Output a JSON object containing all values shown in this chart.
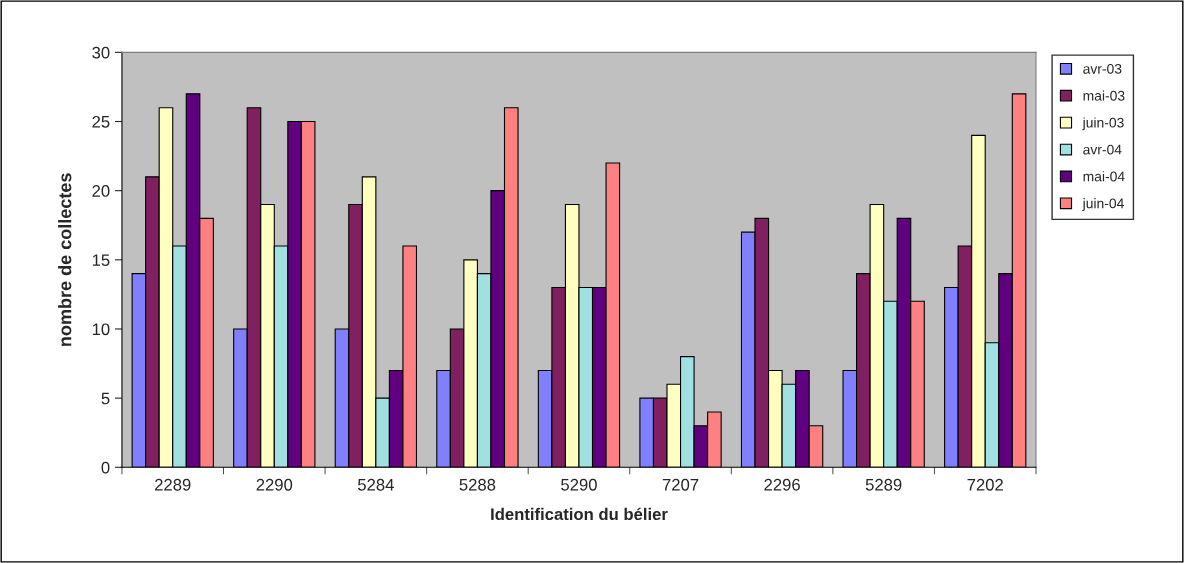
{
  "chart_data": {
    "type": "bar",
    "xlabel": "Identification du bélier",
    "ylabel": "nombre de collectes",
    "categories": [
      "2289",
      "2290",
      "5284",
      "5288",
      "5290",
      "7207",
      "2296",
      "5289",
      "7202"
    ],
    "series": [
      {
        "name": "avr-03",
        "color": "#8080ff",
        "values": [
          14,
          10,
          10,
          7,
          7,
          5,
          17,
          7,
          13
        ]
      },
      {
        "name": "mai-03",
        "color": "#802060",
        "values": [
          21,
          26,
          19,
          10,
          13,
          5,
          18,
          14,
          16
        ]
      },
      {
        "name": "juin-03",
        "color": "#ffffc0",
        "values": [
          26,
          19,
          21,
          15,
          19,
          6,
          7,
          19,
          24
        ]
      },
      {
        "name": "avr-04",
        "color": "#a0e0e0",
        "values": [
          16,
          16,
          5,
          14,
          13,
          8,
          6,
          12,
          9
        ]
      },
      {
        "name": "mai-04",
        "color": "#600080",
        "values": [
          27,
          25,
          7,
          20,
          13,
          3,
          7,
          18,
          14
        ]
      },
      {
        "name": "juin-04",
        "color": "#ff8080",
        "values": [
          18,
          25,
          16,
          26,
          22,
          4,
          3,
          12,
          27
        ]
      }
    ],
    "ylim": [
      0,
      30
    ],
    "yticks": [
      0,
      5,
      10,
      15,
      20,
      25,
      30
    ],
    "grid": false,
    "legend": "top right"
  }
}
